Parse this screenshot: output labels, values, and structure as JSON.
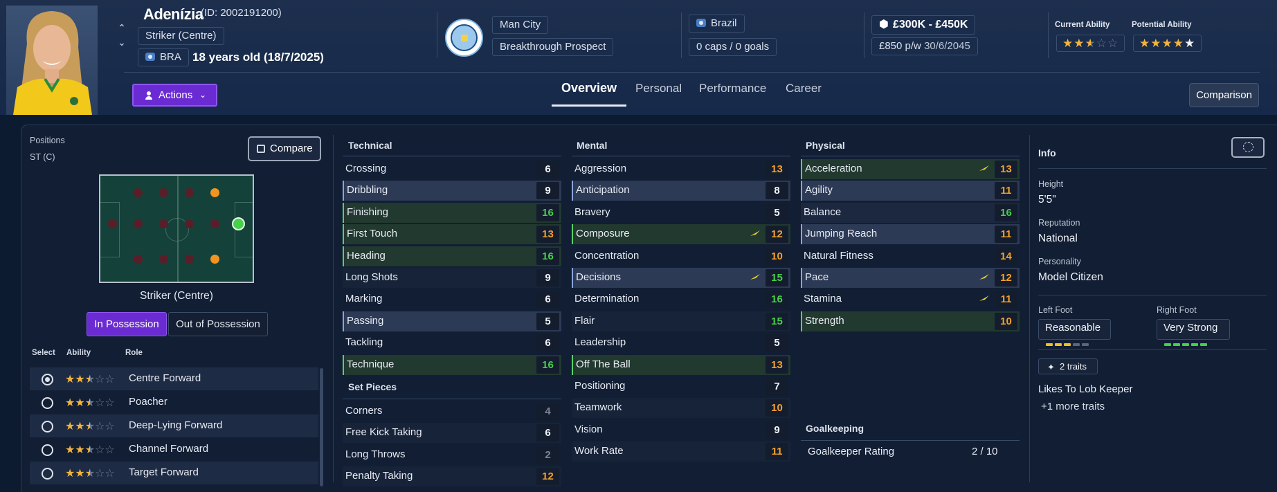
{
  "player": {
    "name": "Adenízia",
    "id_text": "(ID: 2002191200)",
    "position": "Striker (Centre)",
    "nation_code": "BRA",
    "age_text": "18 years old (18/7/2025)"
  },
  "club": {
    "name": "Man City",
    "status": "Breakthrough Prospect",
    "badge_text": "MANCHESTER CITY"
  },
  "nation": {
    "name": "Brazil",
    "caps_text": "0 caps / 0 goals"
  },
  "contract": {
    "value": "£300K - £450K",
    "wage": "£850 p/w",
    "expiry": "30/6/2045"
  },
  "ability": {
    "current_label": "Current Ability",
    "potential_label": "Potential Ability",
    "current_stars": 2.5,
    "potential_stars": 4.5
  },
  "toolbar": {
    "actions_label": "Actions",
    "comparison_label": "Comparison"
  },
  "tabs": [
    "Overview",
    "Personal",
    "Performance",
    "Career"
  ],
  "positions_panel": {
    "title": "Positions",
    "value": "ST (C)",
    "compare_label": "Compare",
    "caption": "Striker (Centre)",
    "in_possession": "In Possession",
    "out_of_possession": "Out of Possession",
    "col_select": "Select",
    "col_ability": "Ability",
    "col_role": "Role",
    "roles": [
      {
        "name": "Centre Forward",
        "stars": 2.5,
        "selected": true
      },
      {
        "name": "Poacher",
        "stars": 2.5,
        "selected": false
      },
      {
        "name": "Deep-Lying Forward",
        "stars": 2.5,
        "selected": false
      },
      {
        "name": "Channel Forward",
        "stars": 2.5,
        "selected": false
      },
      {
        "name": "Target Forward",
        "stars": 2.5,
        "selected": false
      }
    ]
  },
  "technical": {
    "title": "Technical",
    "attributes": [
      {
        "name": "Crossing",
        "value": 6
      },
      {
        "name": "Dribbling",
        "value": 9
      },
      {
        "name": "Finishing",
        "value": 16
      },
      {
        "name": "First Touch",
        "value": 13
      },
      {
        "name": "Heading",
        "value": 16
      },
      {
        "name": "Long Shots",
        "value": 9
      },
      {
        "name": "Marking",
        "value": 6
      },
      {
        "name": "Passing",
        "value": 5
      },
      {
        "name": "Tackling",
        "value": 6
      },
      {
        "name": "Technique",
        "value": 16
      }
    ]
  },
  "set_pieces": {
    "title": "Set Pieces",
    "attributes": [
      {
        "name": "Corners",
        "value": 4
      },
      {
        "name": "Free Kick Taking",
        "value": 6
      },
      {
        "name": "Long Throws",
        "value": 2
      },
      {
        "name": "Penalty Taking",
        "value": 12
      }
    ]
  },
  "mental": {
    "title": "Mental",
    "attributes": [
      {
        "name": "Aggression",
        "value": 13
      },
      {
        "name": "Anticipation",
        "value": 8
      },
      {
        "name": "Bravery",
        "value": 5
      },
      {
        "name": "Composure",
        "value": 12
      },
      {
        "name": "Concentration",
        "value": 10
      },
      {
        "name": "Decisions",
        "value": 15
      },
      {
        "name": "Determination",
        "value": 16
      },
      {
        "name": "Flair",
        "value": 15
      },
      {
        "name": "Leadership",
        "value": 5
      },
      {
        "name": "Off The Ball",
        "value": 13
      },
      {
        "name": "Positioning",
        "value": 7
      },
      {
        "name": "Teamwork",
        "value": 10
      },
      {
        "name": "Vision",
        "value": 9
      },
      {
        "name": "Work Rate",
        "value": 11
      }
    ]
  },
  "physical": {
    "title": "Physical",
    "attributes": [
      {
        "name": "Acceleration",
        "value": 13
      },
      {
        "name": "Agility",
        "value": 11
      },
      {
        "name": "Balance",
        "value": 16
      },
      {
        "name": "Jumping Reach",
        "value": 11
      },
      {
        "name": "Natural Fitness",
        "value": 14
      },
      {
        "name": "Pace",
        "value": 12
      },
      {
        "name": "Stamina",
        "value": 11
      },
      {
        "name": "Strength",
        "value": 10
      }
    ]
  },
  "goalkeeping": {
    "title": "Goalkeeping",
    "rating_label": "Goalkeeper Rating",
    "rating_value": "2 / 10"
  },
  "info": {
    "title": "Info",
    "height_label": "Height",
    "height": "5'5\"",
    "reputation_label": "Reputation",
    "reputation": "National",
    "personality_label": "Personality",
    "personality": "Model Citizen",
    "left_foot_label": "Left Foot",
    "left_foot": "Reasonable",
    "right_foot_label": "Right Foot",
    "right_foot": "Very Strong",
    "traits_chip": "2 traits",
    "trait_1": "Likes To Lob Keeper",
    "more_traits": "+1 more traits"
  },
  "colors": {
    "accent_purple": "#6b2bd3",
    "value_green": "#45d14a",
    "value_orange": "#f3a12d",
    "value_white": "#f2f4f8",
    "star_gold": "#f4b43c"
  }
}
